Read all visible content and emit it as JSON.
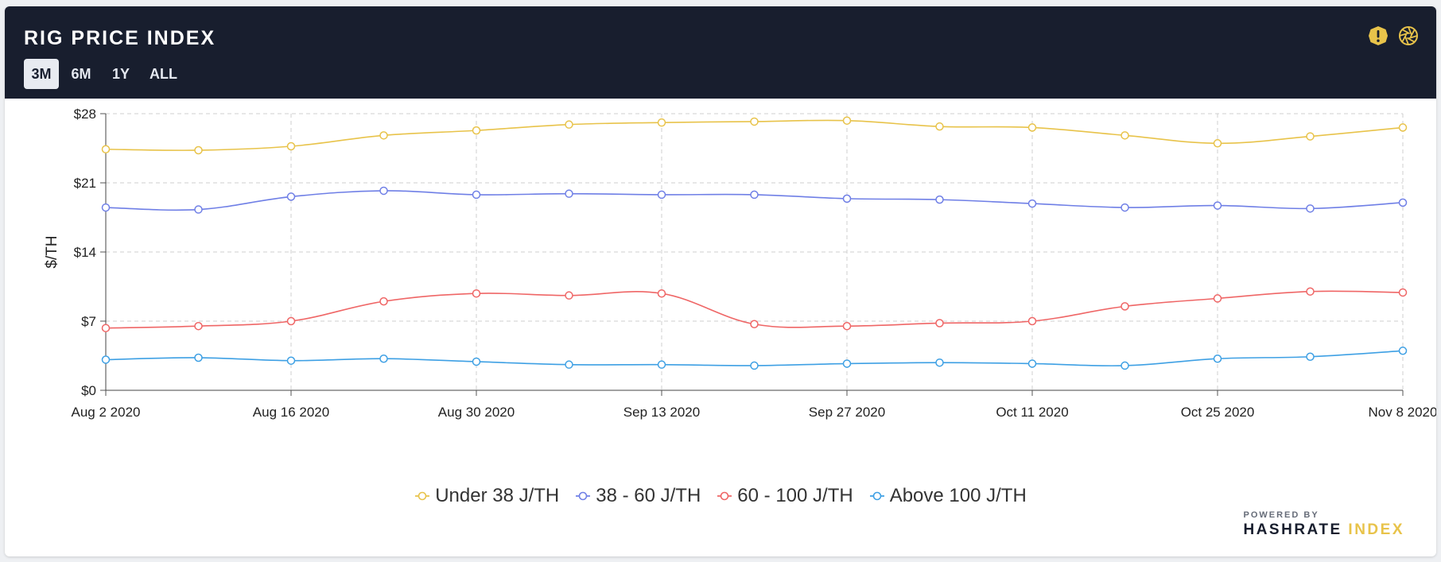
{
  "header": {
    "title": "RIG PRICE INDEX",
    "ranges": [
      "3M",
      "6M",
      "1Y",
      "ALL"
    ],
    "active_range": "3M",
    "icons": [
      "alert-icon",
      "aperture-icon"
    ]
  },
  "colors": {
    "header_bg": "#181e2e",
    "under38": "#e8c34a",
    "r38_60": "#6f7fe6",
    "r60_100": "#ef6666",
    "above100": "#3ea0e4",
    "brand_accent": "#e8c34a"
  },
  "branding": {
    "powered_by": "POWERED BY",
    "name_1": "HASHRATE",
    "name_2": "INDEX"
  },
  "chart_data": {
    "type": "line",
    "title": "RIG PRICE INDEX",
    "ylabel": "$/TH",
    "xlabel": "",
    "ylim": [
      0,
      28
    ],
    "y_ticks": [
      0,
      7,
      14,
      21,
      28
    ],
    "y_tick_labels": [
      "$0",
      "$7",
      "$14",
      "$21",
      "$28"
    ],
    "x_tick_labels": [
      "Aug 2 2020",
      "Aug 16 2020",
      "Aug 30 2020",
      "Sep 13 2020",
      "Sep 27 2020",
      "Oct 11 2020",
      "Oct 25 2020",
      "Nov 8 2020"
    ],
    "x": [
      "Aug 2 2020",
      "Aug 9 2020",
      "Aug 16 2020",
      "Aug 23 2020",
      "Aug 30 2020",
      "Sep 6 2020",
      "Sep 13 2020",
      "Sep 20 2020",
      "Sep 27 2020",
      "Oct 4 2020",
      "Oct 11 2020",
      "Oct 18 2020",
      "Oct 25 2020",
      "Nov 1 2020",
      "Nov 8 2020"
    ],
    "grid": true,
    "legend_position": "bottom-center",
    "series": [
      {
        "name": "Under 38 J/TH",
        "color": "#e8c34a",
        "values": [
          24.4,
          24.3,
          24.7,
          25.8,
          26.3,
          26.9,
          27.1,
          27.2,
          27.3,
          26.7,
          26.6,
          25.8,
          25.0,
          25.7,
          26.6
        ]
      },
      {
        "name": "38 - 60 J/TH",
        "color": "#6f7fe6",
        "values": [
          18.5,
          18.3,
          19.6,
          20.2,
          19.8,
          19.9,
          19.8,
          19.8,
          19.4,
          19.3,
          18.9,
          18.5,
          18.7,
          18.4,
          19.0
        ]
      },
      {
        "name": "60 - 100 J/TH",
        "color": "#ef6666",
        "values": [
          6.3,
          6.5,
          7.0,
          9.0,
          9.8,
          9.6,
          9.8,
          6.7,
          6.5,
          6.8,
          7.0,
          8.5,
          9.3,
          10.0,
          9.9
        ]
      },
      {
        "name": "Above 100 J/TH",
        "color": "#3ea0e4",
        "values": [
          3.1,
          3.3,
          3.0,
          3.2,
          2.9,
          2.6,
          2.6,
          2.5,
          2.7,
          2.8,
          2.7,
          2.5,
          3.2,
          3.4,
          4.0
        ]
      }
    ]
  }
}
